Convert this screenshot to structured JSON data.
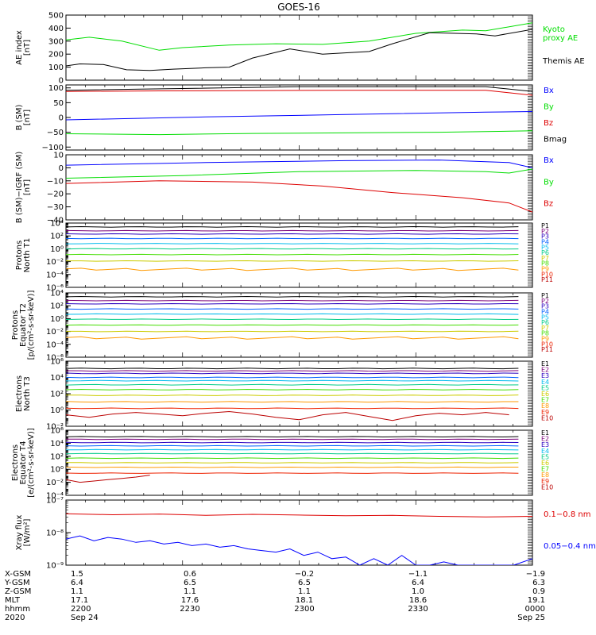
{
  "title": "GOES-16",
  "colors": {
    "black": "#000000",
    "green": "#00dd00",
    "blue": "#0000ff",
    "red": "#dd0000",
    "ch": [
      "#000000",
      "#7a007a",
      "#2a00c0",
      "#0060ff",
      "#00bbee",
      "#00cc88",
      "#44dd00",
      "#cccc00",
      "#ff9900",
      "#ee2200",
      "#bb0000"
    ]
  },
  "x_ticks": [
    "2200",
    "2230",
    "2300",
    "2330",
    "0000"
  ],
  "chart_data": [
    {
      "id": "ae",
      "type": "line",
      "ylabel": "AE index\n[nT]",
      "ylim": [
        0,
        500
      ],
      "yscale": "linear",
      "yticks": [
        {
          "v": 0,
          "l": "0"
        },
        {
          "v": 100,
          "l": "100"
        },
        {
          "v": 200,
          "l": "200"
        },
        {
          "v": 300,
          "l": "300"
        },
        {
          "v": 400,
          "l": "400"
        },
        {
          "v": 500,
          "l": "500"
        }
      ],
      "legend": [
        {
          "label": "Kyoto\nproxy AE",
          "color": "green"
        },
        {
          "label": "Themis AE",
          "color": "black"
        }
      ],
      "series": [
        {
          "name": "Kyoto proxy AE",
          "color": "green",
          "t": [
            0,
            5,
            12,
            20,
            25,
            35,
            45,
            55,
            65,
            75,
            85,
            90,
            100
          ],
          "y": [
            310,
            330,
            300,
            230,
            250,
            270,
            280,
            275,
            300,
            360,
            385,
            380,
            440
          ]
        },
        {
          "name": "Themis AE",
          "color": "black",
          "t": [
            0,
            3,
            8,
            13,
            18,
            23,
            30,
            35,
            40,
            48,
            55,
            65,
            70,
            78,
            88,
            92,
            100
          ],
          "y": [
            110,
            125,
            120,
            80,
            75,
            85,
            95,
            100,
            170,
            240,
            200,
            220,
            280,
            365,
            355,
            340,
            390
          ]
        }
      ]
    },
    {
      "id": "bsm",
      "type": "line",
      "ylabel": "B (SM)\n[nT]",
      "ylim": [
        -110,
        110
      ],
      "yscale": "linear",
      "yticks": [
        {
          "v": -100,
          "l": "−100"
        },
        {
          "v": -50,
          "l": "−50"
        },
        {
          "v": 0,
          "l": "0"
        },
        {
          "v": 50,
          "l": "50"
        },
        {
          "v": 100,
          "l": "100"
        }
      ],
      "legend": [
        {
          "label": "Bx",
          "color": "blue"
        },
        {
          "label": "By",
          "color": "green"
        },
        {
          "label": "Bz",
          "color": "red"
        },
        {
          "label": "Bmag",
          "color": "black"
        }
      ],
      "series": [
        {
          "name": "Bmag",
          "color": "black",
          "t": [
            0,
            50,
            90,
            100
          ],
          "y": [
            92,
            104,
            104,
            88
          ]
        },
        {
          "name": "Bz",
          "color": "red",
          "t": [
            0,
            20,
            60,
            90,
            100
          ],
          "y": [
            88,
            90,
            92,
            92,
            75
          ]
        },
        {
          "name": "Bx",
          "color": "blue",
          "t": [
            0,
            30,
            60,
            90,
            100
          ],
          "y": [
            -8,
            2,
            10,
            18,
            20
          ]
        },
        {
          "name": "By",
          "color": "green",
          "t": [
            0,
            20,
            40,
            60,
            80,
            100
          ],
          "y": [
            -55,
            -58,
            -54,
            -52,
            -50,
            -45
          ]
        }
      ]
    },
    {
      "id": "bigrf",
      "type": "line",
      "ylabel": "B (SM)−IGRF (SM)\n[nT]",
      "ylim": [
        -40,
        10
      ],
      "yscale": "linear",
      "yticks": [
        {
          "v": -40,
          "l": "−40"
        },
        {
          "v": -30,
          "l": "−30"
        },
        {
          "v": -20,
          "l": "−20"
        },
        {
          "v": -10,
          "l": "−10"
        },
        {
          "v": 0,
          "l": "0"
        },
        {
          "v": 10,
          "l": "10"
        }
      ],
      "legend": [
        {
          "label": "Bx",
          "color": "blue"
        },
        {
          "label": "By",
          "color": "green"
        },
        {
          "label": "Bz",
          "color": "red"
        }
      ],
      "series": [
        {
          "name": "Bx",
          "color": "blue",
          "t": [
            0,
            30,
            60,
            80,
            95,
            100
          ],
          "y": [
            2,
            4,
            5.5,
            6,
            4,
            0
          ]
        },
        {
          "name": "By",
          "color": "green",
          "t": [
            0,
            25,
            50,
            75,
            90,
            95,
            100
          ],
          "y": [
            -8,
            -6,
            -3,
            -2,
            -3,
            -4,
            -1
          ]
        },
        {
          "name": "Bz",
          "color": "red",
          "t": [
            0,
            20,
            40,
            55,
            70,
            85,
            95,
            100
          ],
          "y": [
            -12,
            -10,
            -11,
            -14,
            -19,
            -23,
            -27,
            -34
          ]
        }
      ]
    },
    {
      "id": "pT1",
      "type": "line",
      "ylabel": "Protons\nNorth T1",
      "ylim": [
        -6,
        4
      ],
      "yscale": "log",
      "yticks": [
        {
          "v": -6,
          "l": "10⁻⁶"
        },
        {
          "v": -4,
          "l": "10⁻⁴"
        },
        {
          "v": -2,
          "l": "10⁻²"
        },
        {
          "v": 0,
          "l": "10⁰"
        },
        {
          "v": 2,
          "l": "10²"
        },
        {
          "v": 4,
          "l": "10⁴"
        }
      ],
      "legend": [
        {
          "label": "P1",
          "ci": 0
        },
        {
          "label": "P2",
          "ci": 1
        },
        {
          "label": "P3",
          "ci": 2
        },
        {
          "label": "P4",
          "ci": 3
        },
        {
          "label": "P5",
          "ci": 4
        },
        {
          "label": "P6",
          "ci": 5
        },
        {
          "label": "P7",
          "ci": 7
        },
        {
          "label": "P8",
          "ci": 6
        },
        {
          "label": "P9",
          "ci": 8
        },
        {
          "label": "P10",
          "ci": 9
        },
        {
          "label": "P11",
          "ci": 10
        }
      ],
      "channels": [
        {
          "y": 3.4,
          "ci": 0
        },
        {
          "y": 2.8,
          "ci": 1
        },
        {
          "y": 2.3,
          "ci": 2
        },
        {
          "y": 1.6,
          "ci": 3
        },
        {
          "y": 0.8,
          "ci": 4
        },
        {
          "y": 0.0,
          "ci": 5
        },
        {
          "y": -0.9,
          "ci": 6
        },
        {
          "y": -1.9,
          "ci": 7
        },
        {
          "y": -3.2,
          "ci": 8,
          "jag": true
        }
      ]
    },
    {
      "id": "pT2",
      "type": "line",
      "ylabel": "Protons\nEquator T2\n[p/(cm²-s-sr-keV)]",
      "ylim": [
        -6,
        4
      ],
      "yscale": "log",
      "yticks": [
        {
          "v": -6,
          "l": "10⁻⁶"
        },
        {
          "v": -4,
          "l": "10⁻⁴"
        },
        {
          "v": -2,
          "l": "10⁻²"
        },
        {
          "v": 0,
          "l": "10⁰"
        },
        {
          "v": 2,
          "l": "10²"
        },
        {
          "v": 4,
          "l": "10⁴"
        }
      ],
      "legend": [
        {
          "label": "P1",
          "ci": 0
        },
        {
          "label": "P2",
          "ci": 1
        },
        {
          "label": "P3",
          "ci": 2
        },
        {
          "label": "P4",
          "ci": 3
        },
        {
          "label": "P5",
          "ci": 4
        },
        {
          "label": "P6",
          "ci": 5
        },
        {
          "label": "P7",
          "ci": 7
        },
        {
          "label": "P8",
          "ci": 6
        },
        {
          "label": "P9",
          "ci": 8
        },
        {
          "label": "P10",
          "ci": 9
        },
        {
          "label": "P11",
          "ci": 10
        }
      ],
      "channels": [
        {
          "y": 3.4,
          "ci": 0
        },
        {
          "y": 2.8,
          "ci": 1
        },
        {
          "y": 2.3,
          "ci": 2
        },
        {
          "y": 1.5,
          "ci": 3
        },
        {
          "y": 0.7,
          "ci": 4
        },
        {
          "y": -0.1,
          "ci": 5
        },
        {
          "y": -1.0,
          "ci": 6
        },
        {
          "y": -2.0,
          "ci": 7
        },
        {
          "y": -3.0,
          "ci": 8,
          "jag": true
        }
      ]
    },
    {
      "id": "eT3",
      "type": "line",
      "ylabel": "Electrons\nNorth T3",
      "ylim": [
        -2,
        6
      ],
      "yscale": "log",
      "yticks": [
        {
          "v": -2,
          "l": "10⁻²"
        },
        {
          "v": 0,
          "l": "10⁰"
        },
        {
          "v": 2,
          "l": "10²"
        },
        {
          "v": 4,
          "l": "10⁴"
        },
        {
          "v": 6,
          "l": "10⁶"
        }
      ],
      "legend": [
        {
          "label": "E1",
          "ci": 0
        },
        {
          "label": "E2",
          "ci": 1
        },
        {
          "label": "E3",
          "ci": 2
        },
        {
          "label": "E4",
          "ci": 4
        },
        {
          "label": "E5",
          "ci": 5
        },
        {
          "label": "E6",
          "ci": 7
        },
        {
          "label": "E7",
          "ci": 6
        },
        {
          "label": "E8",
          "ci": 8
        },
        {
          "label": "E9",
          "ci": 9
        },
        {
          "label": "E10",
          "ci": 10
        }
      ],
      "channels": [
        {
          "y": 5.1,
          "ci": 0
        },
        {
          "y": 4.8,
          "ci": 1
        },
        {
          "y": 4.5,
          "ci": 2
        },
        {
          "y": 4.0,
          "ci": 3
        },
        {
          "y": 3.6,
          "ci": 4
        },
        {
          "y": 3.1,
          "ci": 5
        },
        {
          "y": 2.5,
          "ci": 6
        },
        {
          "y": 1.8,
          "ci": 7
        },
        {
          "y": 1.0,
          "ci": 8
        },
        {
          "y": 0.2,
          "ci": 9
        }
      ],
      "jagged": [
        {
          "ci": 10,
          "t": [
            0,
            5,
            10,
            15,
            20,
            25,
            30,
            35,
            40,
            45,
            50,
            55,
            60,
            65,
            70,
            75,
            80,
            85,
            90,
            95
          ],
          "y": [
            -0.6,
            -0.9,
            -0.5,
            -0.3,
            -0.5,
            -0.7,
            -0.4,
            -0.2,
            -0.5,
            -0.9,
            -1.2,
            -0.6,
            -0.3,
            -0.8,
            -1.3,
            -0.7,
            -0.4,
            -0.6,
            -0.3,
            -0.6
          ]
        }
      ]
    },
    {
      "id": "eT4",
      "type": "line",
      "ylabel": "Electrons\nEquator T4\n[e/(cm²-s-sr-keV)]",
      "ylim": [
        -4,
        6
      ],
      "yscale": "log",
      "yticks": [
        {
          "v": -4,
          "l": "10⁻⁴"
        },
        {
          "v": -2,
          "l": "10⁻²"
        },
        {
          "v": 0,
          "l": "10⁰"
        },
        {
          "v": 2,
          "l": "10²"
        },
        {
          "v": 4,
          "l": "10⁴"
        },
        {
          "v": 6,
          "l": "10⁶"
        }
      ],
      "legend": [
        {
          "label": "E1",
          "ci": 0
        },
        {
          "label": "E2",
          "ci": 1
        },
        {
          "label": "E3",
          "ci": 2
        },
        {
          "label": "E4",
          "ci": 4
        },
        {
          "label": "E5",
          "ci": 5
        },
        {
          "label": "E6",
          "ci": 7
        },
        {
          "label": "E7",
          "ci": 6
        },
        {
          "label": "E8",
          "ci": 8
        },
        {
          "label": "E9",
          "ci": 9
        },
        {
          "label": "E10",
          "ci": 10
        }
      ],
      "channels": [
        {
          "y": 5.0,
          "ci": 0
        },
        {
          "y": 4.6,
          "ci": 1
        },
        {
          "y": 4.1,
          "ci": 2
        },
        {
          "y": 3.6,
          "ci": 3
        },
        {
          "y": 3.0,
          "ci": 4
        },
        {
          "y": 2.4,
          "ci": 5
        },
        {
          "y": 1.7,
          "ci": 6
        },
        {
          "y": 1.0,
          "ci": 7
        },
        {
          "y": 0.3,
          "ci": 8
        },
        {
          "y": -0.6,
          "ci": 9
        }
      ],
      "jagged": [
        {
          "ci": 10,
          "t": [
            0,
            3,
            6,
            9,
            12,
            15,
            18
          ],
          "y": [
            -1.6,
            -2.0,
            -1.8,
            -1.6,
            -1.4,
            -1.2,
            -0.9
          ]
        }
      ]
    },
    {
      "id": "xray",
      "type": "line",
      "ylabel": "Xray flux\n[W/m²]",
      "ylim": [
        -9,
        -7
      ],
      "yscale": "log",
      "yticks": [
        {
          "v": -9,
          "l": "10⁻⁹"
        },
        {
          "v": -8,
          "l": "10⁻⁸"
        },
        {
          "v": -7,
          "l": "10⁻⁷"
        }
      ],
      "legend": [
        {
          "label": "0.1−0.8 nm",
          "color": "red"
        },
        {
          "label": "0.05−0.4 nm",
          "color": "blue"
        }
      ],
      "series": [
        {
          "name": "0.1−0.8 nm",
          "color": "red",
          "t": [
            0,
            10,
            20,
            30,
            40,
            50,
            60,
            70,
            80,
            90,
            100
          ],
          "y": [
            -7.42,
            -7.45,
            -7.43,
            -7.47,
            -7.44,
            -7.46,
            -7.48,
            -7.47,
            -7.5,
            -7.52,
            -7.5
          ]
        },
        {
          "name": "0.05−0.4 nm",
          "color": "blue",
          "t": [
            0,
            3,
            6,
            9,
            12,
            15,
            18,
            21,
            24,
            27,
            30,
            33,
            36,
            39,
            42,
            45,
            48,
            51,
            54,
            57,
            60,
            63,
            66,
            69,
            72,
            75,
            78,
            81,
            84,
            87,
            90,
            93,
            96,
            100
          ],
          "y": [
            -8.2,
            -8.1,
            -8.25,
            -8.15,
            -8.2,
            -8.3,
            -8.25,
            -8.35,
            -8.3,
            -8.4,
            -8.35,
            -8.45,
            -8.4,
            -8.5,
            -8.55,
            -8.6,
            -8.5,
            -8.7,
            -8.6,
            -8.8,
            -8.75,
            -9.0,
            -8.8,
            -9.0,
            -8.7,
            -9.0,
            -9.0,
            -8.9,
            -9.0,
            -9.0,
            -9.0,
            -9.0,
            -9.0,
            -8.8
          ]
        }
      ]
    }
  ],
  "orbit": {
    "rows": [
      {
        "label": "X-GSM",
        "values": [
          "1.5",
          "0.6",
          "−0.2",
          "−1.1",
          "−1.9"
        ]
      },
      {
        "label": "Y-GSM",
        "values": [
          "6.4",
          "6.5",
          "6.5",
          "6.4",
          "6.3"
        ]
      },
      {
        "label": "Z-GSM",
        "values": [
          "1.1",
          "1.1",
          "1.1",
          "1.0",
          "0.9"
        ]
      },
      {
        "label": "MLT",
        "values": [
          "17.1",
          "17.6",
          "18.1",
          "18.6",
          "19.1"
        ]
      },
      {
        "label": "hhmm",
        "values": [
          "2200",
          "2230",
          "2300",
          "2330",
          "0000"
        ]
      },
      {
        "label": "2020",
        "values": [
          "Sep 24",
          "",
          "",
          "",
          "Sep 25"
        ]
      }
    ]
  }
}
